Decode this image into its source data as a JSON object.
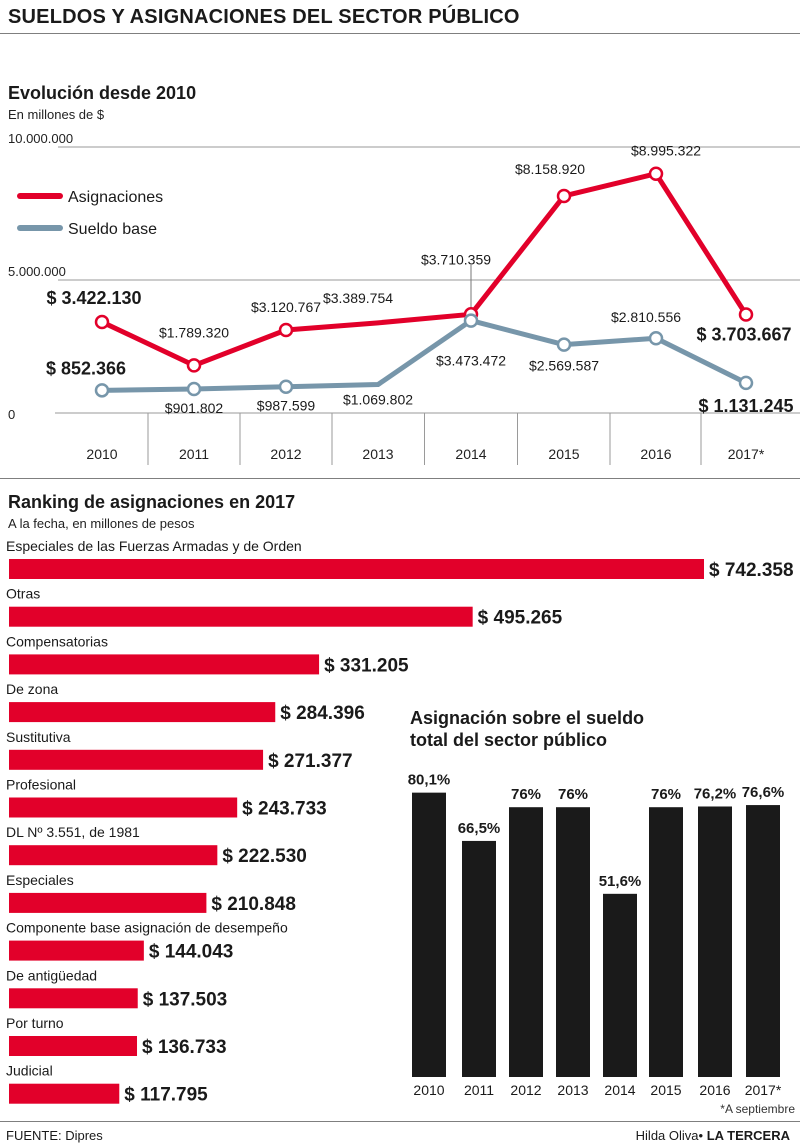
{
  "header": {
    "title": "SUELDOS Y ASIGNACIONES DEL SECTOR PÚBLICO"
  },
  "line_section": {
    "title": "Evolución desde 2010",
    "subtitle": "En millones de $"
  },
  "ranking_section": {
    "title": "Ranking de asignaciones en 2017",
    "subtitle": "A la fecha, en millones de pesos"
  },
  "share_section": {
    "title_line1": "Asignación sobre el sueldo",
    "title_line2": "total del sector público",
    "note": "*A septiembre"
  },
  "footer": {
    "source": "FUENTE: Dipres",
    "author": "Hilda Oliva",
    "separator": "•",
    "brand": "LA TERCERA"
  },
  "colors": {
    "red": "#e2002a",
    "blue": "#7796aa",
    "black": "#1a1a1a",
    "grid": "#9a9a9a"
  },
  "chart_data": [
    {
      "type": "line",
      "x": [
        "2010",
        "2011",
        "2012",
        "2013",
        "2014",
        "2015",
        "2016",
        "2017*"
      ],
      "y_ticks": [
        {
          "value": 10000000,
          "label": "10.000.000"
        },
        {
          "value": 5000000,
          "label": "5.000.000"
        },
        {
          "value": 0,
          "label": "0"
        }
      ],
      "ylim": [
        0,
        10000000
      ],
      "legend_position": "top-left",
      "series": [
        {
          "name": "Asignaciones",
          "color": "#e2002a",
          "values": [
            3422130,
            1789320,
            3120767,
            3389754,
            3710359,
            8158920,
            8995322,
            3703667
          ],
          "labels": [
            "$ 3.422.130",
            "$1.789.320",
            "$3.120.767",
            "$3.389.754",
            "$3.710.359",
            "$8.158.920",
            "$8.995.322",
            "$ 3.703.667"
          ],
          "markers": [
            true,
            true,
            true,
            false,
            true,
            true,
            true,
            true
          ]
        },
        {
          "name": "Sueldo base",
          "color": "#7796aa",
          "values": [
            852366,
            901802,
            987599,
            1069802,
            3473472,
            2569587,
            2810556,
            1131245
          ],
          "labels": [
            "$ 852.366",
            "$901.802",
            "$987.599",
            "$1.069.802",
            "$3.473.472",
            "$2.569.587",
            "$2.810.556",
            "$ 1.131.245"
          ],
          "markers": [
            true,
            true,
            true,
            false,
            true,
            true,
            true,
            true
          ]
        }
      ]
    },
    {
      "type": "bar",
      "orientation": "horizontal",
      "categories": [
        "Especiales de las Fuerzas Armadas y de Orden",
        "Otras",
        "Compensatorias",
        "De zona",
        "Sustitutiva",
        "Profesional",
        "DL Nº 3.551, de 1981",
        "Especiales",
        "Componente base asignación de desempeño",
        "De antigüedad",
        "Por turno",
        "Judicial"
      ],
      "values": [
        742358,
        495265,
        331205,
        284396,
        271377,
        243733,
        222530,
        210848,
        144043,
        137503,
        136733,
        117795
      ],
      "value_labels": [
        "$ 742.358",
        "$ 495.265",
        "$ 331.205",
        "$ 284.396",
        "$ 271.377",
        "$ 243.733",
        "$ 222.530",
        "$ 210.848",
        "$ 144.043",
        "$ 137.503",
        "$ 136.733",
        "$ 117.795"
      ],
      "color": "#e2002a"
    },
    {
      "type": "bar",
      "categories": [
        "2010",
        "2011",
        "2012",
        "2013",
        "2014",
        "2015",
        "2016",
        "2017*"
      ],
      "values": [
        80.1,
        66.5,
        76,
        76,
        51.6,
        76,
        76.2,
        76.6
      ],
      "value_labels": [
        "80,1%",
        "66,5%",
        "76%",
        "76%",
        "51,6%",
        "76%",
        "76,2%",
        "76,6%"
      ],
      "color": "#1a1a1a"
    }
  ]
}
